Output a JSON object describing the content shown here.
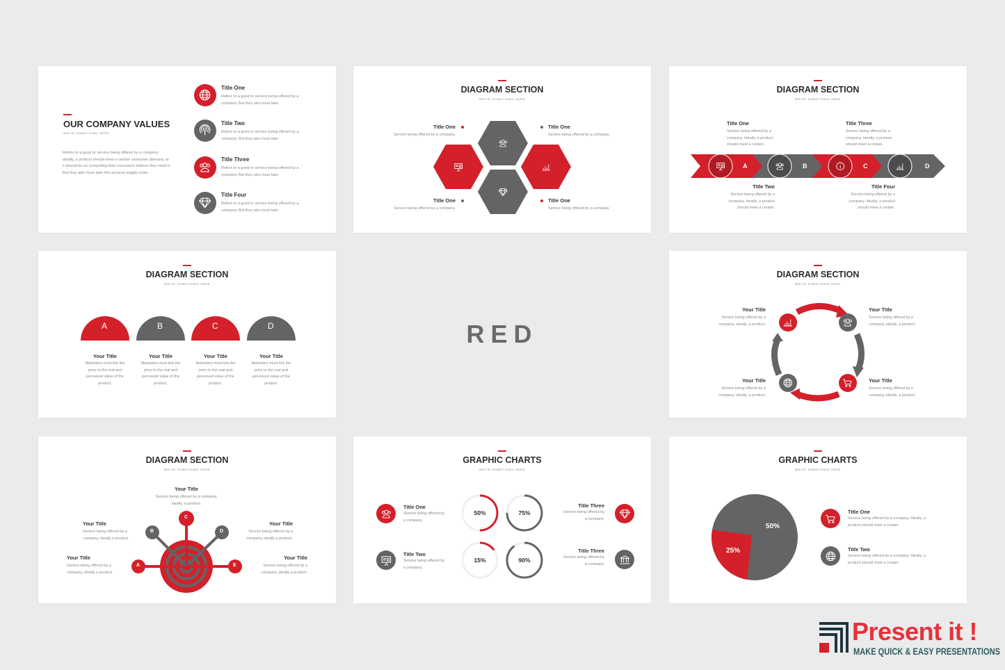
{
  "colors": {
    "red": "#d3202a",
    "gray": "#636466",
    "background": "#ebebec"
  },
  "common": {
    "subtitle": "WRITE SOMETHING HERE",
    "desc": "Service being offered by a company.",
    "desc3": "Service being offered by a company. Ideally, a product should meet a certain.",
    "desc_short": "Service being offered by a company, ideally a product."
  },
  "slide1": {
    "title": "OUR COMPANY VALUES",
    "subtitle": "WRITE SOMETHING HERE",
    "paragraph": "Refers to a good or service being offered by a company ideally, a product should meet a certain consumer demand, or it should be so compelling that consumers believe they need it. But they also must take into account supply costs.",
    "items": [
      {
        "title": "Title One",
        "desc": "Refers to a good or service being offered by a company. But they also must take",
        "icon": "globe-icon"
      },
      {
        "title": "Title Two",
        "desc": "Refers to a good or service being offered by a company. But they also must take",
        "icon": "podcast-icon"
      },
      {
        "title": "Title Three",
        "desc": "Refers to a good or service being offered by a company. But they also must take",
        "icon": "users-icon"
      },
      {
        "title": "Title Four",
        "desc": "Refers to a good or service being offered by a company. But they also must take",
        "icon": "diamond-icon"
      }
    ]
  },
  "slide2": {
    "title": "DIAGRAM SECTION",
    "subtitle": "WRITE SOMETHING HERE",
    "items": [
      {
        "title": "Title One",
        "desc": "Service being offered by a company."
      },
      {
        "title": "Title One",
        "desc": "Service being offered by a company."
      },
      {
        "title": "Title One",
        "desc": "Service being offered by a company."
      },
      {
        "title": "Title One",
        "desc": "Service being offered by a company."
      }
    ]
  },
  "slide3": {
    "title": "DIAGRAM SECTION",
    "subtitle": "WRITE SOMETHING HERE",
    "steps": [
      "A",
      "B",
      "C",
      "D"
    ],
    "items": [
      {
        "title": "Title One",
        "desc": "Service being offered by a company. Ideally, a product should meet a certain."
      },
      {
        "title": "Title Two",
        "desc": "Service being offered by a company. Ideally, a product should meet a certain."
      },
      {
        "title": "Title Three",
        "desc": "Service being offered by a company. Ideally, a product should meet a certain."
      },
      {
        "title": "Title Four",
        "desc": "Service being offered by a company. Ideally, a product should meet a certain."
      }
    ]
  },
  "slide4": {
    "title": "DIAGRAM SECTION",
    "subtitle": "WRITE SOMETHING HERE",
    "items": [
      {
        "letter": "A",
        "title": "Your Title",
        "desc": "Marketers must link the price to the real and perceived value of the product."
      },
      {
        "letter": "B",
        "title": "Your Title",
        "desc": "Marketers must link the price to the real and perceived value of the product."
      },
      {
        "letter": "C",
        "title": "Your Title",
        "desc": "Marketers must link the price to the real and perceived value of the product."
      },
      {
        "letter": "D",
        "title": "Your Title",
        "desc": "Marketers must link the price to the real and perceived value of the product."
      }
    ]
  },
  "slide5": {
    "title": "RED"
  },
  "slide6": {
    "title": "DIAGRAM SECTION",
    "subtitle": "WRITE SOMETHING HERE",
    "items": [
      {
        "title": "Your Title",
        "desc": "Service being offered by a company, ideally, a product."
      },
      {
        "title": "Your Title",
        "desc": "Service being offered by a company, ideally, a product."
      },
      {
        "title": "Your Title",
        "desc": "Service being offered by a company, ideally, a product."
      },
      {
        "title": "Your Title",
        "desc": "Service being offered by a company, ideally, a product."
      }
    ]
  },
  "slide7": {
    "title": "DIAGRAM SECTION",
    "subtitle": "WRITE SOMETHING HERE",
    "nodes": [
      "A",
      "B",
      "C",
      "D",
      "E"
    ],
    "items": [
      {
        "title": "Your Title",
        "desc": "Service being offered by a company, ideally, a product."
      },
      {
        "title": "Your Title",
        "desc": "Service being offered by a company, ideally a product."
      },
      {
        "title": "Your Title",
        "desc": "Service being offered by a company, ideally a product."
      },
      {
        "title": "Your Title",
        "desc": "Service being offered by a company, ideally a product."
      },
      {
        "title": "Your Title",
        "desc": "Service being offered by a company, ideally a product."
      }
    ]
  },
  "slide8": {
    "title": "GRAPHIC CHARTS",
    "subtitle": "WRITE SOMETHING HERE",
    "items": [
      {
        "title": "Title One",
        "desc": "Service being offered by a company."
      },
      {
        "title": "Title Two",
        "desc": "Service being offered by a company."
      },
      {
        "title": "Title Three",
        "desc": "Service being offered by a company."
      },
      {
        "title": "Title Three",
        "desc": "Service being offered by a company."
      }
    ],
    "rings": [
      {
        "label": "50%",
        "value": 50,
        "color": "#d3202a"
      },
      {
        "label": "75%",
        "value": 75,
        "color": "#636466"
      },
      {
        "label": "15%",
        "value": 15,
        "color": "#d3202a"
      },
      {
        "label": "90%",
        "value": 90,
        "color": "#636466"
      }
    ]
  },
  "slide9": {
    "title": "GRAPHIC CHARTS",
    "subtitle": "WRITE SOMETHING HERE",
    "pie": [
      {
        "label": "50%",
        "value": 50,
        "color": "#636466"
      },
      {
        "label": "25%",
        "value": 25,
        "color": "#d3202a"
      }
    ],
    "items": [
      {
        "title": "Title One",
        "desc": "Service being offered by a company. Ideally, a product should meet a certain."
      },
      {
        "title": "Title Two",
        "desc": "Service being offered by a company. Ideally, a product should meet a certain."
      }
    ]
  },
  "logo": {
    "name": "Present it !",
    "tagline": "MAKE QUICK & EASY PRESENTATIONS"
  }
}
